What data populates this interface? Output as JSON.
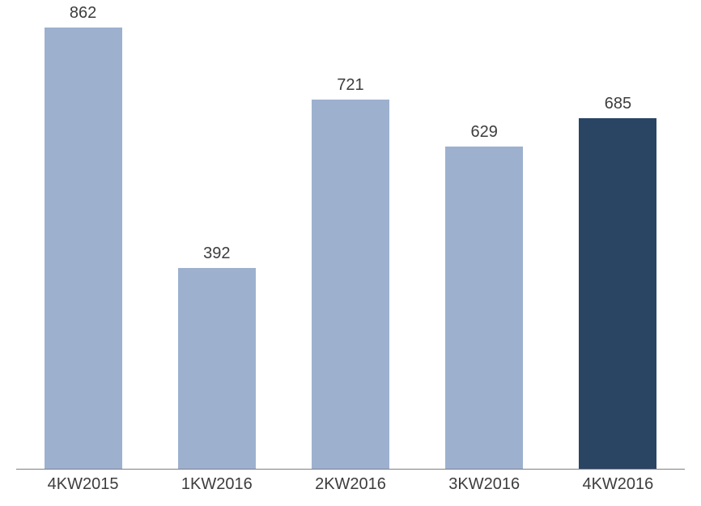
{
  "chart": {
    "type": "bar",
    "categories": [
      "4KW2015",
      "1KW2016",
      "2KW2016",
      "3KW2016",
      "4KW2016"
    ],
    "values": [
      862,
      392,
      721,
      629,
      685
    ],
    "bar_colors": [
      "#9db1cf",
      "#9db1cf",
      "#9db1cf",
      "#9db1cf",
      "#2a4464"
    ],
    "value_label_color": "#3d3d3d",
    "x_label_color": "#3d3d3d",
    "axis_line_color": "#808080",
    "background_color": "#ffffff",
    "ylim": [
      0,
      900
    ],
    "value_fontsize": 20,
    "x_label_fontsize": 20,
    "bar_width": 0.58
  }
}
